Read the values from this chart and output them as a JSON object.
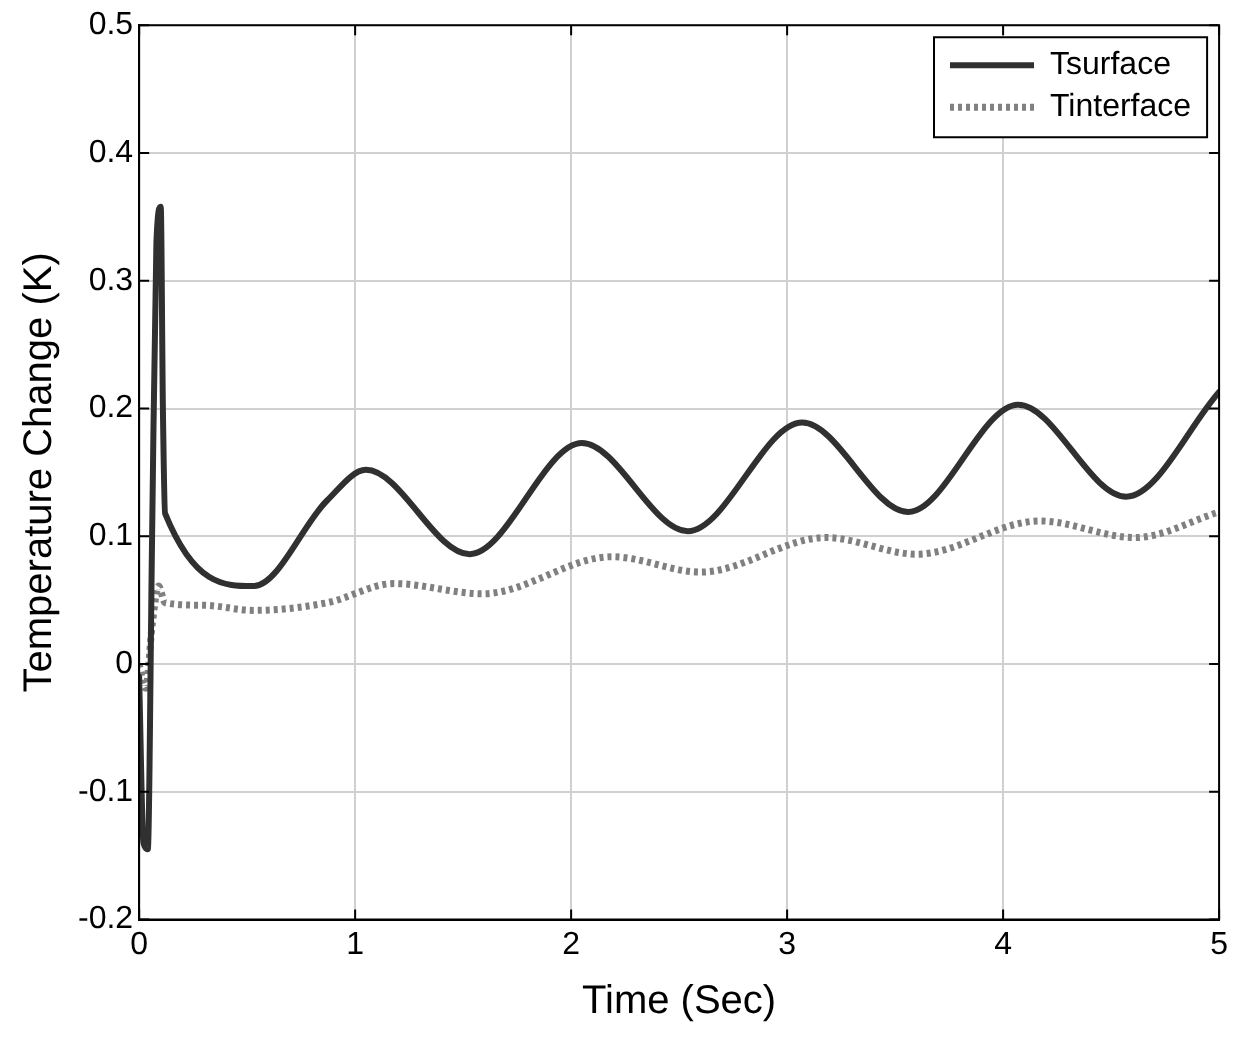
{
  "chart_data": {
    "type": "line",
    "xlabel": "Time (Sec)",
    "ylabel": "Temperature Change (K)",
    "xlim": [
      0,
      5
    ],
    "xticks": [
      0,
      1,
      2,
      3,
      4,
      5
    ],
    "ylim": [
      -0.2,
      0.5
    ],
    "yticks": [
      -0.2,
      -0.1,
      0,
      0.1,
      0.2,
      0.3,
      0.4,
      0.5
    ],
    "grid": true,
    "legend": "top right",
    "marker": "none",
    "series": [
      {
        "name": "Tsurface",
        "color": "#303030",
        "line_style": "solid",
        "x": [
          0,
          0.02,
          0.04,
          0.06,
          0.08,
          0.1,
          0.11,
          0.12,
          0.53,
          0.87,
          1.05,
          1.53,
          2.05,
          2.54,
          3.07,
          3.56,
          4.07,
          4.57,
          5
        ],
        "values": [
          -0.01,
          -0.14,
          -0.145,
          0.1,
          0.33,
          0.358,
          0.2,
          0.118,
          0.061,
          0.128,
          0.152,
          0.086,
          0.173,
          0.104,
          0.189,
          0.119,
          0.203,
          0.131,
          0.213
        ]
      },
      {
        "name": "Tinterface",
        "color": "#808080",
        "line_style": "dotted",
        "x": [
          0,
          0.03,
          0.06,
          0.09,
          0.12,
          0.3,
          0.53,
          0.87,
          1.18,
          1.59,
          2.19,
          2.6,
          3.18,
          3.6,
          4.17,
          4.61,
          5
        ],
        "values": [
          0,
          -0.019,
          0.03,
          0.061,
          0.048,
          0.046,
          0.042,
          0.048,
          0.063,
          0.055,
          0.084,
          0.072,
          0.099,
          0.086,
          0.112,
          0.099,
          0.119
        ]
      }
    ]
  }
}
